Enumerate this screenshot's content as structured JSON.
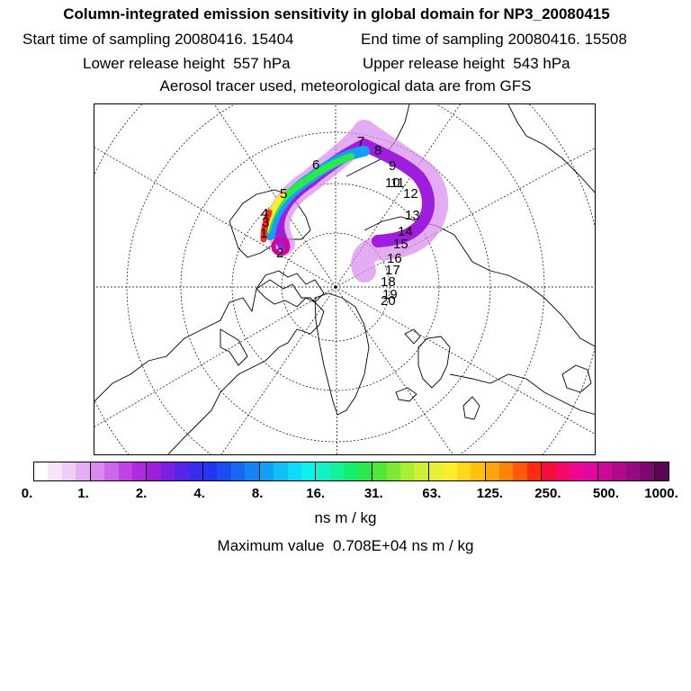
{
  "header": {
    "title": "Column-integrated emission sensitivity in global domain for NP3_20080415",
    "start_label": "Start time of sampling",
    "start_value": "20080416. 15404",
    "end_label": "End time of sampling",
    "end_value": "20080416. 15508",
    "lower_label": "Lower release height",
    "lower_value": "557 hPa",
    "upper_label": "Upper release height",
    "upper_value": "543 hPa",
    "info": "Aerosol tracer used, meteorological data are from GFS"
  },
  "map": {
    "projection": "polar stereographic (north)",
    "trajectory_labels": [
      "1",
      "2",
      "3",
      "4",
      "5",
      "6",
      "7",
      "8",
      "9",
      "10",
      "11",
      "12",
      "13",
      "14",
      "15",
      "16",
      "17",
      "18",
      "19",
      "20"
    ]
  },
  "colorbar": {
    "colors": [
      "#ffffff",
      "#f7e6fb",
      "#eecdf7",
      "#e4aff2",
      "#d98aee",
      "#cc66ea",
      "#bf44e6",
      "#b22ae0",
      "#9f1ddc",
      "#7c1fe0",
      "#5a24e6",
      "#3a2cec",
      "#2236f0",
      "#1a4cf2",
      "#1768f4",
      "#1484f5",
      "#12a0f6",
      "#10bff7",
      "#0edcf6",
      "#0ef2ee",
      "#12f2c4",
      "#14f29a",
      "#16ee70",
      "#2ce84c",
      "#52e838",
      "#7ee834",
      "#a8ee32",
      "#ccf034",
      "#e8f036",
      "#fcec30",
      "#ffd81e",
      "#ffc010",
      "#ffa40c",
      "#ff8408",
      "#ff5a08",
      "#ff2c10",
      "#f80c38",
      "#f4086a",
      "#ee0890",
      "#e008a0",
      "#cc0898",
      "#b4088c",
      "#980880",
      "#7c0870",
      "#5a0654"
    ],
    "tick_labels": [
      "0.",
      "1.",
      "2.",
      "4.",
      "8.",
      "16.",
      "31.",
      "63.",
      "125.",
      "250.",
      "500.",
      "1000."
    ],
    "unit": "ns m / kg",
    "max_label": "Maximum value",
    "max_value": "0.708E+04 ns m / kg"
  }
}
